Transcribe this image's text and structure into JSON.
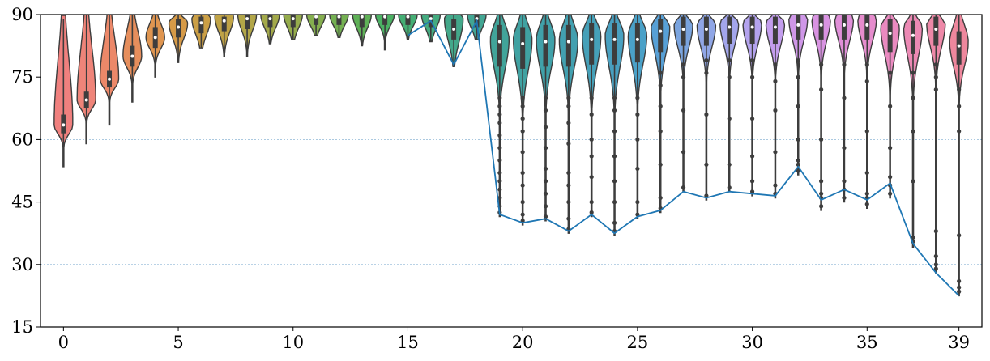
{
  "chart_data": {
    "type": "violin",
    "title": "",
    "xlabel": "",
    "ylabel": "",
    "xlim": [
      -1,
      40
    ],
    "ylim": [
      15,
      90
    ],
    "x_ticks": [
      0,
      5,
      10,
      15,
      20,
      25,
      30,
      35,
      39
    ],
    "y_ticks": [
      15,
      30,
      45,
      60,
      75,
      90
    ],
    "grid": {
      "axis": "y",
      "style": "dotted",
      "color": "#8fb7d6",
      "values": [
        30,
        60
      ]
    },
    "categories": [
      0,
      1,
      2,
      3,
      4,
      5,
      6,
      7,
      8,
      9,
      10,
      11,
      12,
      13,
      14,
      15,
      16,
      17,
      18,
      19,
      20,
      21,
      22,
      23,
      24,
      25,
      26,
      27,
      28,
      29,
      30,
      31,
      32,
      33,
      34,
      35,
      36,
      37,
      38,
      39
    ],
    "violins": [
      {
        "x": 0,
        "min": 53.5,
        "q1": 61.5,
        "median": 63.5,
        "q3": 66.0,
        "max": 89.0,
        "peak": 63.5,
        "color": "#f0807e"
      },
      {
        "x": 1,
        "min": 59.0,
        "q1": 67.5,
        "median": 69.5,
        "q3": 71.5,
        "max": 90.0,
        "peak": 69.5,
        "color": "#ef8479"
      },
      {
        "x": 2,
        "min": 63.5,
        "q1": 72.5,
        "median": 74.5,
        "q3": 76.5,
        "max": 90.0,
        "peak": 74.5,
        "color": "#ec8869"
      },
      {
        "x": 3,
        "min": 69.0,
        "q1": 77.5,
        "median": 80.0,
        "q3": 82.5,
        "max": 90.0,
        "peak": 80.0,
        "color": "#e68e5c"
      },
      {
        "x": 4,
        "min": 75.0,
        "q1": 82.0,
        "median": 84.5,
        "q3": 87.0,
        "max": 90.0,
        "peak": 84.5,
        "color": "#df9550"
      },
      {
        "x": 5,
        "min": 78.5,
        "q1": 84.5,
        "median": 87.0,
        "q3": 89.0,
        "max": 90.0,
        "peak": 88.0,
        "color": "#d69a47"
      },
      {
        "x": 6,
        "min": 82.0,
        "q1": 85.5,
        "median": 88.0,
        "q3": 89.5,
        "max": 90.0,
        "peak": 89.0,
        "color": "#cb9f45"
      },
      {
        "x": 7,
        "min": 80.0,
        "q1": 86.0,
        "median": 88.5,
        "q3": 89.5,
        "max": 90.0,
        "peak": 89.5,
        "color": "#c0a346"
      },
      {
        "x": 8,
        "min": 80.0,
        "q1": 86.5,
        "median": 89.0,
        "q3": 90.0,
        "max": 90.0,
        "peak": 90.0,
        "color": "#b2a648"
      },
      {
        "x": 9,
        "min": 83.0,
        "q1": 87.0,
        "median": 89.0,
        "q3": 90.0,
        "max": 90.0,
        "peak": 90.0,
        "color": "#a3a94a"
      },
      {
        "x": 10,
        "min": 84.0,
        "q1": 87.0,
        "median": 89.0,
        "q3": 90.0,
        "max": 90.0,
        "peak": 90.0,
        "color": "#95ac4c"
      },
      {
        "x": 11,
        "min": 85.0,
        "q1": 87.5,
        "median": 89.5,
        "q3": 90.0,
        "max": 90.0,
        "peak": 90.0,
        "color": "#85ae4f"
      },
      {
        "x": 12,
        "min": 84.5,
        "q1": 87.5,
        "median": 89.5,
        "q3": 90.0,
        "max": 90.0,
        "peak": 90.0,
        "color": "#74b052"
      },
      {
        "x": 13,
        "min": 82.5,
        "q1": 87.0,
        "median": 89.5,
        "q3": 90.0,
        "max": 90.0,
        "peak": 90.0,
        "color": "#5fb157"
      },
      {
        "x": 14,
        "min": 81.5,
        "q1": 87.5,
        "median": 89.5,
        "q3": 90.0,
        "max": 90.0,
        "peak": 90.0,
        "color": "#4bb163"
      },
      {
        "x": 15,
        "min": 84.0,
        "q1": 87.5,
        "median": 89.5,
        "q3": 90.0,
        "max": 90.0,
        "peak": 90.0,
        "color": "#45ae74"
      },
      {
        "x": 16,
        "min": 83.5,
        "q1": 87.0,
        "median": 89.0,
        "q3": 90.0,
        "max": 90.0,
        "peak": 90.0,
        "color": "#44ab80"
      },
      {
        "x": 17,
        "min": 77.5,
        "q1": 84.0,
        "median": 86.5,
        "q3": 89.0,
        "max": 90.0,
        "peak": 89.0,
        "color": "#43a88a"
      },
      {
        "x": 18,
        "min": 84.0,
        "q1": 87.0,
        "median": 89.0,
        "q3": 90.0,
        "max": 90.0,
        "peak": 90.0,
        "color": "#42a693"
      },
      {
        "x": 19,
        "min": 41.5,
        "q1": 77.5,
        "median": 83.5,
        "q3": 87.5,
        "max": 90.0,
        "peak": 84.0,
        "color": "#41a49a"
      },
      {
        "x": 20,
        "min": 39.5,
        "q1": 77.0,
        "median": 83.0,
        "q3": 87.0,
        "max": 90.0,
        "peak": 84.0,
        "color": "#40a2a2"
      },
      {
        "x": 21,
        "min": 40.5,
        "q1": 77.5,
        "median": 83.5,
        "q3": 87.5,
        "max": 90.0,
        "peak": 84.0,
        "color": "#40a1a9"
      },
      {
        "x": 22,
        "min": 37.5,
        "q1": 77.5,
        "median": 83.5,
        "q3": 87.5,
        "max": 90.0,
        "peak": 84.0,
        "color": "#42a0b0"
      },
      {
        "x": 23,
        "min": 41.5,
        "q1": 78.0,
        "median": 84.0,
        "q3": 88.0,
        "max": 90.0,
        "peak": 85.0,
        "color": "#45a0b8"
      },
      {
        "x": 24,
        "min": 37.0,
        "q1": 78.0,
        "median": 84.0,
        "q3": 88.0,
        "max": 90.0,
        "peak": 85.0,
        "color": "#48a0c0"
      },
      {
        "x": 25,
        "min": 41.0,
        "q1": 78.5,
        "median": 84.0,
        "q3": 88.0,
        "max": 90.0,
        "peak": 85.0,
        "color": "#4aa1c8"
      },
      {
        "x": 26,
        "min": 42.5,
        "q1": 81.0,
        "median": 86.0,
        "q3": 89.0,
        "max": 90.0,
        "peak": 87.0,
        "color": "#57a0d6"
      },
      {
        "x": 27,
        "min": 47.5,
        "q1": 82.5,
        "median": 86.5,
        "q3": 89.5,
        "max": 90.0,
        "peak": 87.5,
        "color": "#7aa4df"
      },
      {
        "x": 28,
        "min": 45.5,
        "q1": 82.5,
        "median": 86.5,
        "q3": 89.5,
        "max": 90.0,
        "peak": 87.5,
        "color": "#90a6e6"
      },
      {
        "x": 29,
        "min": 47.5,
        "q1": 83.0,
        "median": 87.0,
        "q3": 89.5,
        "max": 90.0,
        "peak": 88.0,
        "color": "#a3a6ec"
      },
      {
        "x": 30,
        "min": 46.5,
        "q1": 83.0,
        "median": 87.0,
        "q3": 89.5,
        "max": 90.0,
        "peak": 88.0,
        "color": "#b4a3ee"
      },
      {
        "x": 31,
        "min": 46.0,
        "q1": 83.0,
        "median": 87.0,
        "q3": 89.5,
        "max": 90.0,
        "peak": 88.0,
        "color": "#c39ded"
      },
      {
        "x": 32,
        "min": 51.5,
        "q1": 84.0,
        "median": 87.5,
        "q3": 90.0,
        "max": 90.0,
        "peak": 89.0,
        "color": "#cf97e8"
      },
      {
        "x": 33,
        "min": 43.0,
        "q1": 84.0,
        "median": 87.5,
        "q3": 90.0,
        "max": 90.0,
        "peak": 89.0,
        "color": "#d993e2"
      },
      {
        "x": 34,
        "min": 45.0,
        "q1": 84.0,
        "median": 87.5,
        "q3": 90.0,
        "max": 90.0,
        "peak": 89.0,
        "color": "#e08fd8"
      },
      {
        "x": 35,
        "min": 43.5,
        "q1": 84.0,
        "median": 87.5,
        "q3": 90.0,
        "max": 90.0,
        "peak": 89.0,
        "color": "#e68ccd"
      },
      {
        "x": 36,
        "min": 46.0,
        "q1": 81.0,
        "median": 85.5,
        "q3": 89.0,
        "max": 90.0,
        "peak": 87.0,
        "color": "#ea8ac0"
      },
      {
        "x": 37,
        "min": 34.0,
        "q1": 80.5,
        "median": 85.0,
        "q3": 88.5,
        "max": 90.0,
        "peak": 87.0,
        "color": "#ec89b4"
      },
      {
        "x": 38,
        "min": 28.0,
        "q1": 82.5,
        "median": 86.5,
        "q3": 89.5,
        "max": 90.0,
        "peak": 88.0,
        "color": "#ee88a8"
      },
      {
        "x": 39,
        "min": 22.5,
        "q1": 78.0,
        "median": 82.5,
        "q3": 86.0,
        "max": 90.0,
        "peak": 83.5,
        "color": "#ee879d"
      }
    ],
    "min_line": {
      "color": "#1f77b4",
      "points": [
        [
          15,
          85.0
        ],
        [
          16,
          88.5
        ],
        [
          17,
          78.0
        ],
        [
          18,
          88.5
        ],
        [
          19,
          42.0
        ],
        [
          20,
          40.0
        ],
        [
          21,
          41.0
        ],
        [
          22,
          38.0
        ],
        [
          23,
          42.0
        ],
        [
          24,
          37.5
        ],
        [
          25,
          41.5
        ],
        [
          26,
          43.0
        ],
        [
          27,
          47.5
        ],
        [
          28,
          46.0
        ],
        [
          29,
          47.5
        ],
        [
          30,
          47.0
        ],
        [
          31,
          46.5
        ],
        [
          32,
          53.5
        ],
        [
          33,
          45.5
        ],
        [
          34,
          48.0
        ],
        [
          35,
          45.5
        ],
        [
          36,
          49.5
        ],
        [
          37,
          35.0
        ],
        [
          38,
          28.0
        ],
        [
          39,
          22.5
        ]
      ]
    },
    "outlier_dots": [
      {
        "x": 19,
        "values": [
          42.5,
          44,
          46,
          48,
          50,
          52,
          55,
          58,
          61,
          64,
          66,
          68,
          70
        ]
      },
      {
        "x": 20,
        "values": [
          40.5,
          42,
          45,
          49,
          52,
          57,
          62,
          65,
          68,
          70
        ]
      },
      {
        "x": 21,
        "values": [
          41.5,
          44,
          47,
          50,
          53,
          58,
          63,
          67,
          70
        ]
      },
      {
        "x": 22,
        "values": [
          38.5,
          41,
          45,
          49,
          52,
          59,
          64,
          68,
          70
        ]
      },
      {
        "x": 23,
        "values": [
          42.5,
          45,
          51,
          56,
          60,
          66,
          70
        ]
      },
      {
        "x": 24,
        "values": [
          38.0,
          40,
          45,
          50,
          56,
          62,
          67,
          70
        ]
      },
      {
        "x": 25,
        "values": [
          42.0,
          45,
          53,
          60,
          66,
          70
        ]
      },
      {
        "x": 26,
        "values": [
          43.5,
          46,
          54,
          62,
          68,
          73,
          76
        ]
      },
      {
        "x": 27,
        "values": [
          48.5,
          57,
          67,
          75,
          78
        ]
      },
      {
        "x": 28,
        "values": [
          46.5,
          54,
          66,
          76,
          79
        ]
      },
      {
        "x": 29,
        "values": [
          48.5,
          54,
          65,
          75,
          79
        ]
      },
      {
        "x": 30,
        "values": [
          47.5,
          50,
          56,
          65,
          75,
          79
        ]
      },
      {
        "x": 31,
        "values": [
          47.0,
          49,
          57,
          67,
          74,
          78
        ]
      },
      {
        "x": 32,
        "values": [
          52.5,
          54,
          55,
          60,
          68,
          75,
          79
        ]
      },
      {
        "x": 33,
        "values": [
          44.0,
          46,
          47,
          50,
          60,
          72,
          78
        ]
      },
      {
        "x": 34,
        "values": [
          46.0,
          48,
          50,
          58,
          70,
          78
        ]
      },
      {
        "x": 35,
        "values": [
          44.5,
          46,
          47,
          52,
          62,
          74,
          78
        ]
      },
      {
        "x": 36,
        "values": [
          47.0,
          49,
          51,
          58,
          68,
          76
        ]
      },
      {
        "x": 37,
        "values": [
          35.5,
          36.5,
          50,
          62,
          70,
          76
        ]
      },
      {
        "x": 38,
        "values": [
          29.0,
          30,
          32,
          38,
          72,
          75,
          78
        ]
      },
      {
        "x": 39,
        "values": [
          23.5,
          24.5,
          26,
          37,
          62,
          68,
          72
        ]
      }
    ]
  }
}
